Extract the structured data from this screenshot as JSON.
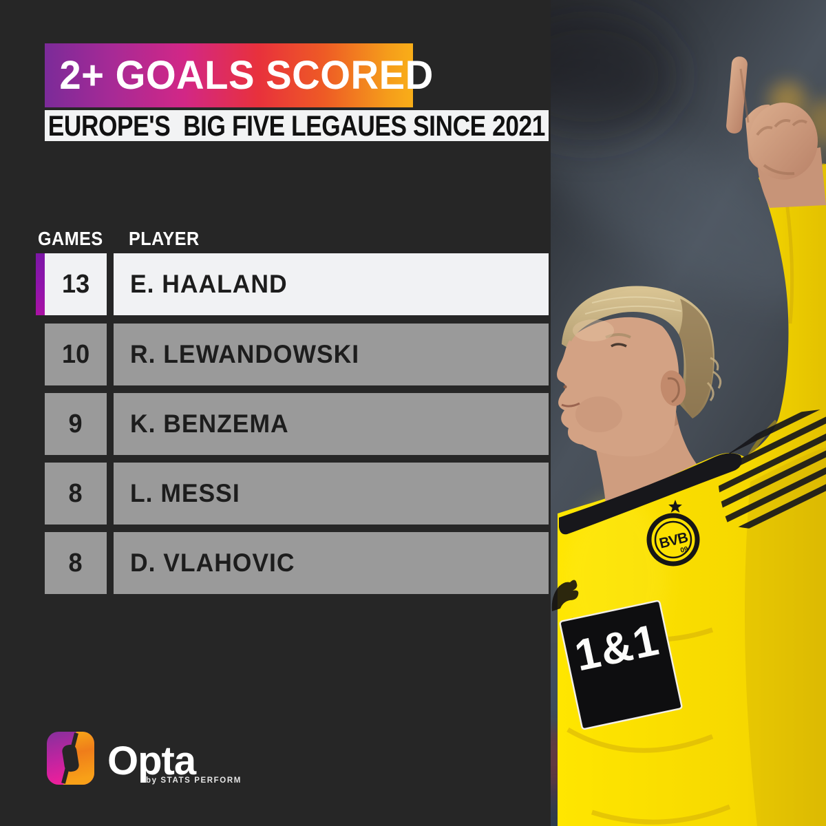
{
  "title": {
    "text": "2+ GOALS SCORED"
  },
  "subtitle": {
    "text": "EUROPE'S  BIG FIVE LEGAUES SINCE 2021"
  },
  "table": {
    "columns": {
      "games": "GAMES",
      "player": "PLAYER"
    },
    "rows": [
      {
        "games": "13",
        "player": "E. HAALAND",
        "highlighted": true
      },
      {
        "games": "10",
        "player": "R. LEWANDOWSKI",
        "highlighted": false
      },
      {
        "games": "9",
        "player": "K. BENZEMA",
        "highlighted": false
      },
      {
        "games": "8",
        "player": "L. MESSI",
        "highlighted": false
      },
      {
        "games": "8",
        "player": "D. VLAHOVIC",
        "highlighted": false
      }
    ]
  },
  "branding": {
    "wordmark": "Opta",
    "sub_brand": "by STATS PERFORM"
  },
  "photo": {
    "sponsor": "1&1",
    "badge_text": "BVB",
    "badge_number": "09"
  },
  "colors": {
    "background": "#262626",
    "banner_gradient": [
      "#7b2b99",
      "#d22786",
      "#e8313c",
      "#f9ae18"
    ],
    "subtitle_bg": "#f2f3f4",
    "row_gray": "#9a9a9a",
    "row_highlight": "#f1f2f4",
    "accent_purple": "#8a12ad",
    "shirt_yellow": "#fbdf00",
    "text_dark": "#1d1d1d",
    "text_white": "#ffffff"
  },
  "chart_data": {
    "type": "table",
    "title": "2+ GOALS SCORED",
    "subtitle": "EUROPE'S  BIG FIVE LEGAUES SINCE 2021",
    "columns": [
      "GAMES",
      "PLAYER"
    ],
    "rows": [
      [
        13,
        "E. HAALAND"
      ],
      [
        10,
        "R. LEWANDOWSKI"
      ],
      [
        9,
        "K. BENZEMA"
      ],
      [
        8,
        "L. MESSI"
      ],
      [
        8,
        "D. VLAHOVIC"
      ]
    ],
    "highlighted_row_index": 0,
    "legend_position": "none",
    "grid": false
  }
}
